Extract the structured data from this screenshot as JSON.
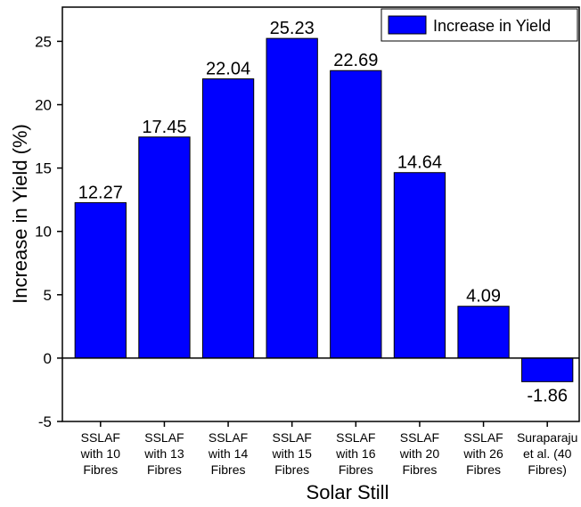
{
  "chart_data": {
    "type": "bar",
    "x_label": "Solar Still",
    "y_label": "Increase in Yield (%)",
    "categories": [
      "SSLAF\nwith 10\nFibres",
      "SSLAF\nwith 13\nFibres",
      "SSLAF\nwith 14\nFibres",
      "SSLAF\nwith 15\nFibres",
      "SSLAF\nwith 16\nFibres",
      "SSLAF\nwith 20\nFibres",
      "SSLAF\nwith 26\nFibres",
      "Suraparaju\net al. (40\nFibres)"
    ],
    "series": [
      {
        "name": "Increase in Yield",
        "color": "#0000ff",
        "values": [
          12.27,
          17.45,
          22.04,
          25.23,
          22.69,
          14.64,
          4.09,
          -1.86
        ]
      }
    ],
    "ylim": [
      -5,
      27.7
    ],
    "yticks": [
      -5,
      0,
      5,
      10,
      15,
      20,
      25
    ],
    "legend": "top-right"
  }
}
